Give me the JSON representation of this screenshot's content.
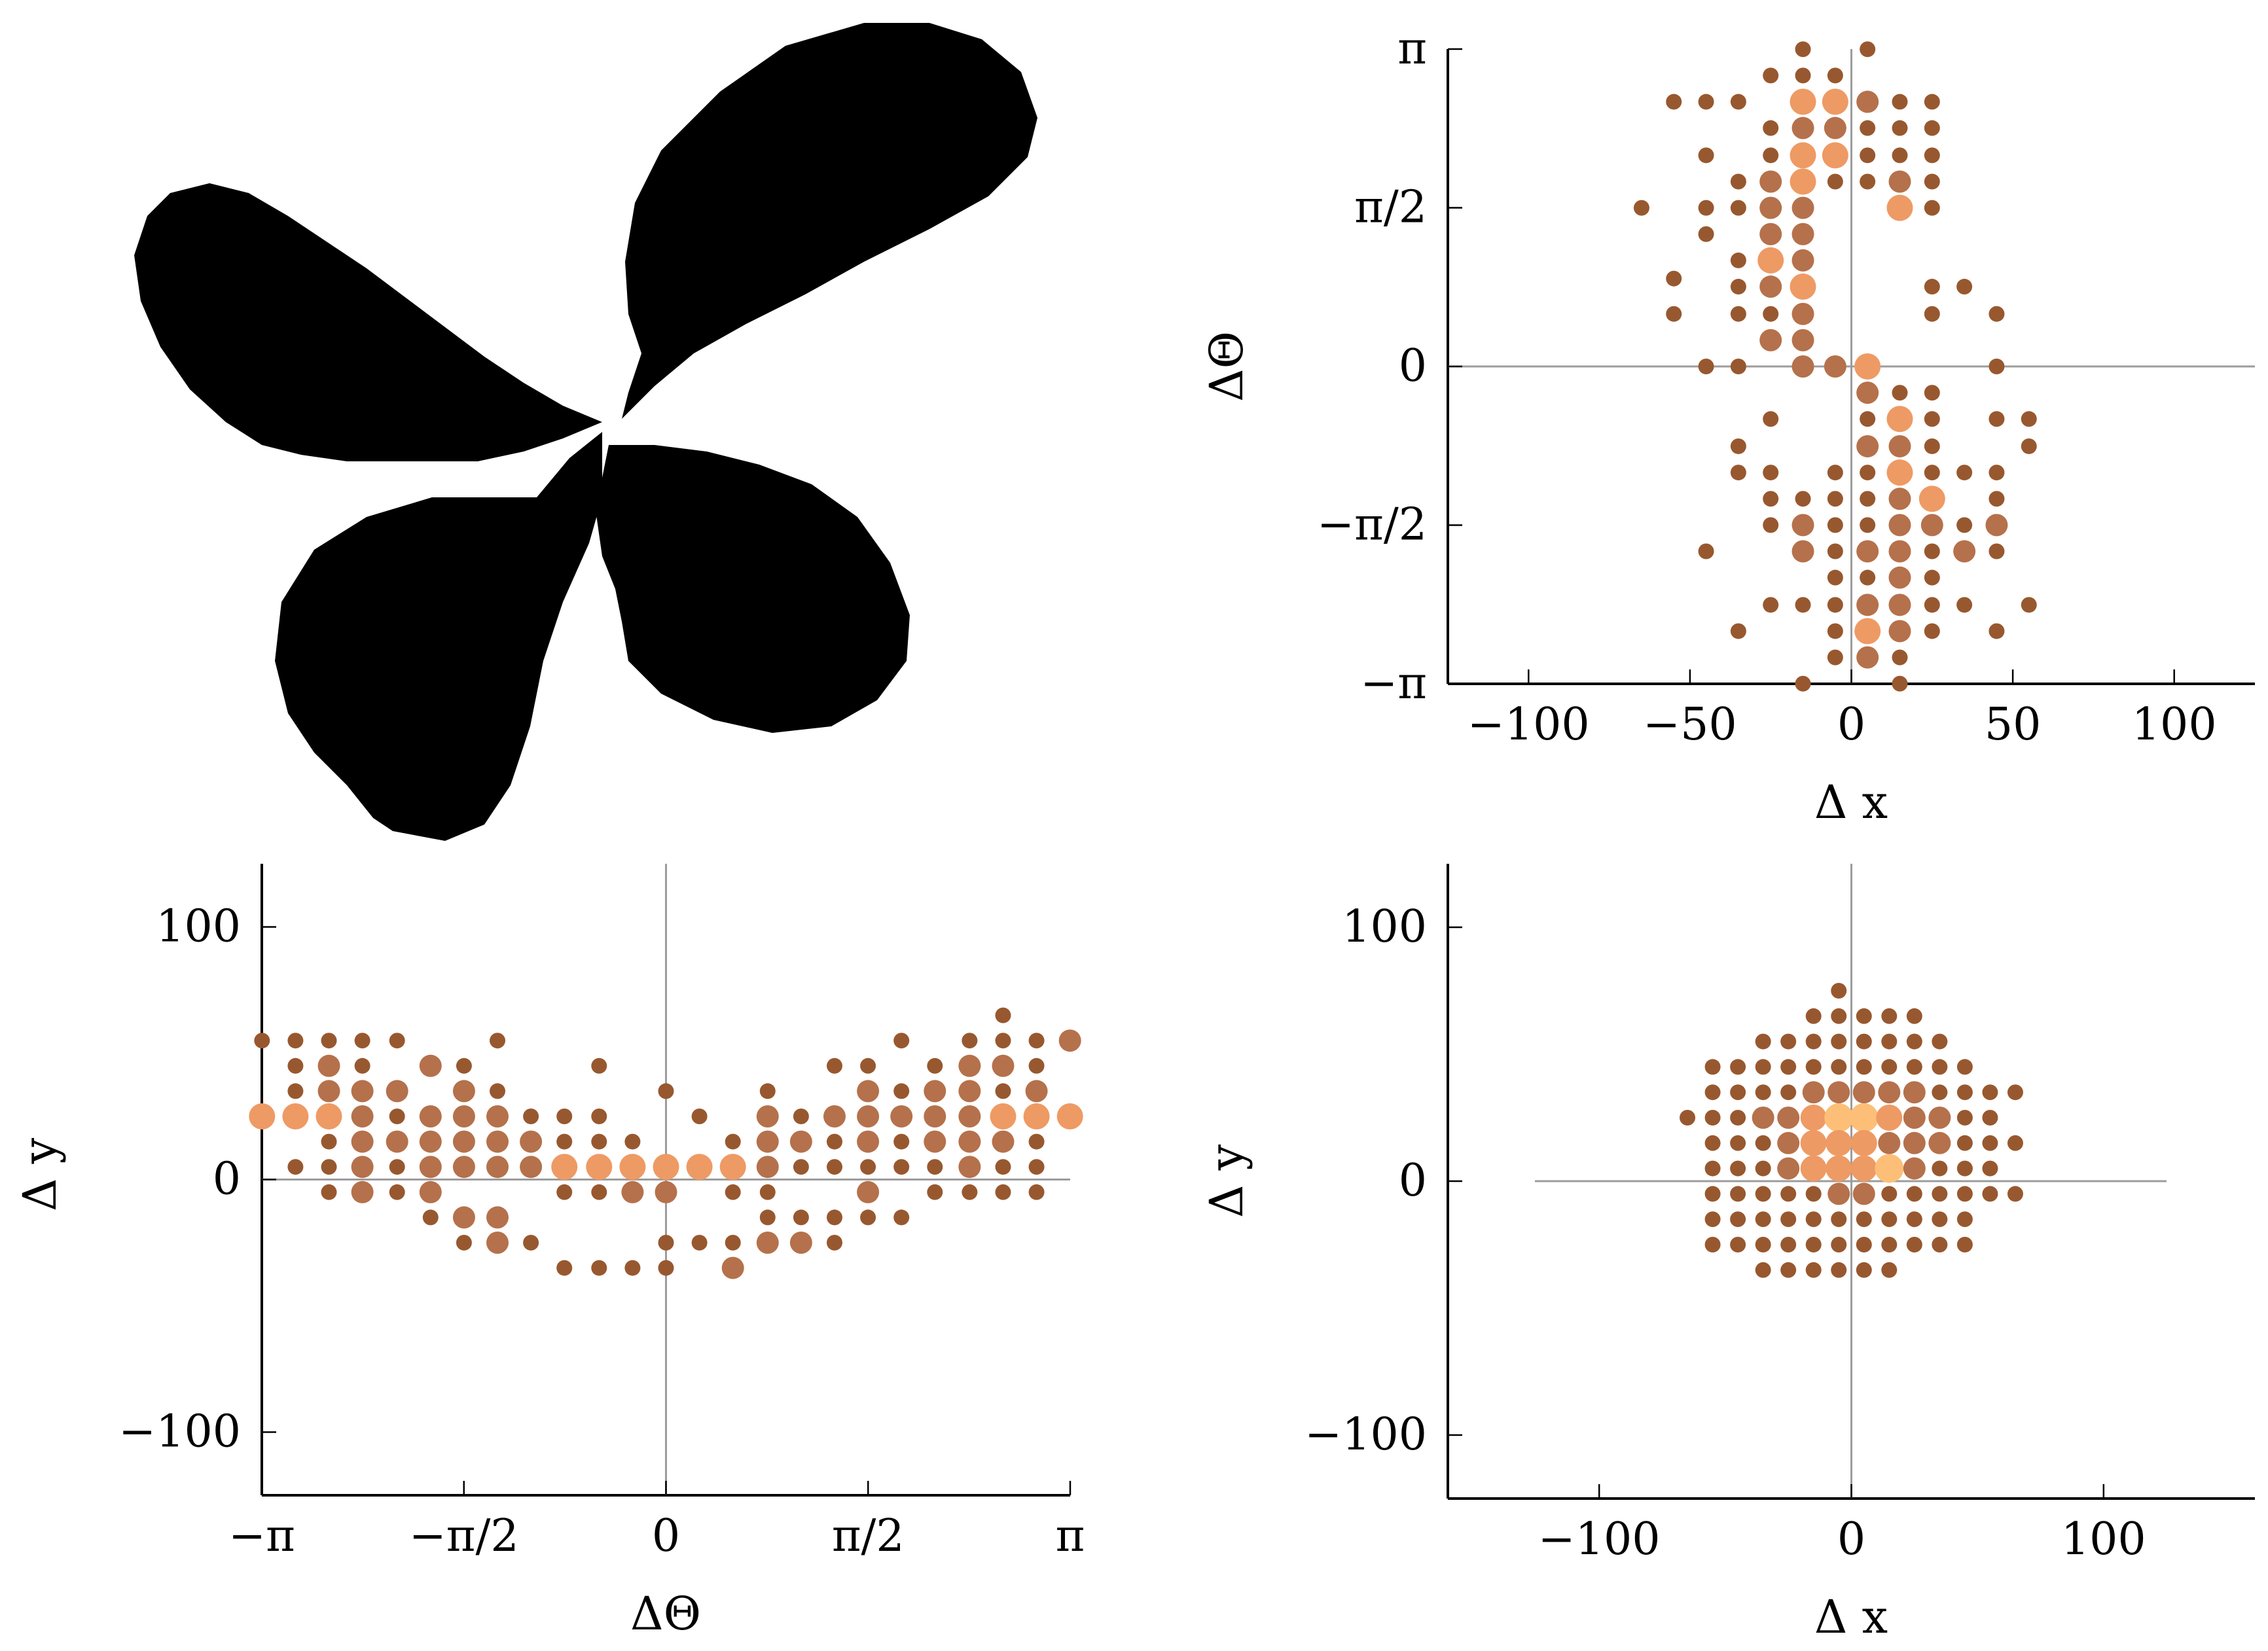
{
  "colors": {
    "dark": "#98582f",
    "mid": "#b5714b",
    "light": "#ee9a64",
    "lightest": "#fdbf78",
    "shape": "#000000",
    "zero_line": "#9c9c9c"
  },
  "chart_data": [
    {
      "type": "image",
      "name": "shape",
      "description_visible": false
    },
    {
      "type": "scatter",
      "name": "dx-dtheta",
      "xlabel": "Δ x",
      "ylabel": "ΔΘ",
      "xlim": [
        -125,
        125
      ],
      "ylim": [
        -3.1416,
        3.1416
      ],
      "xticks": [
        -100,
        -50,
        0,
        50,
        100
      ],
      "xtick_labels": [
        "−100",
        "−50",
        "0",
        "50",
        "100"
      ],
      "yticks": [
        -3.1416,
        -1.5708,
        0,
        1.5708,
        3.1416
      ],
      "ytick_labels": [
        "−π",
        "−π/2",
        "0",
        "π/2",
        "π"
      ],
      "columns": [
        {
          "x": -65,
          "y": [
            1.57
          ],
          "s": [
            1
          ]
        },
        {
          "x": -55,
          "y": [
            2.62,
            0.87,
            0.52
          ],
          "s": [
            1,
            1,
            1
          ]
        },
        {
          "x": -45,
          "y": [
            2.62,
            2.09,
            1.57,
            1.31,
            0,
            -1.83
          ],
          "s": [
            1,
            1,
            1,
            1,
            1,
            1
          ]
        },
        {
          "x": -35,
          "y": [
            2.62,
            1.83,
            1.57,
            1.05,
            0.79,
            0.52,
            0,
            -0.79,
            -1.05,
            -2.62
          ],
          "s": [
            1,
            1,
            1,
            1,
            1,
            1,
            1,
            1,
            1,
            1
          ]
        },
        {
          "x": -25,
          "y": [
            2.88,
            2.36,
            2.09,
            1.83,
            1.57,
            1.31,
            1.05,
            0.79,
            0.52,
            0.26,
            -0.52,
            -1.05,
            -1.31,
            -1.57,
            -2.36
          ],
          "s": [
            1,
            1,
            1,
            2,
            2,
            2,
            3,
            2,
            1,
            2,
            1,
            1,
            1,
            1,
            1
          ]
        },
        {
          "x": -15,
          "y": [
            3.14,
            2.88,
            2.62,
            2.36,
            2.09,
            1.83,
            1.57,
            1.31,
            1.05,
            0.79,
            0.52,
            0.26,
            0,
            -1.31,
            -1.57,
            -1.83,
            -2.36,
            -3.14
          ],
          "s": [
            1,
            1,
            3,
            2,
            3,
            3,
            2,
            2,
            2,
            3,
            2,
            2,
            2,
            1,
            2,
            2,
            1,
            1
          ]
        },
        {
          "x": -5,
          "y": [
            2.88,
            2.62,
            2.36,
            2.09,
            1.83,
            0,
            -1.05,
            -1.31,
            -1.57,
            -1.83,
            -2.09,
            -2.36,
            -2.62,
            -2.88
          ],
          "s": [
            1,
            3,
            2,
            3,
            1,
            2,
            1,
            1,
            1,
            1,
            1,
            1,
            1,
            1
          ]
        },
        {
          "x": 5,
          "y": [
            3.14,
            2.62,
            2.36,
            2.09,
            1.83,
            0,
            -0.26,
            -0.52,
            -0.79,
            -1.05,
            -1.31,
            -1.57,
            -1.83,
            -2.09,
            -2.36,
            -2.62,
            -2.88
          ],
          "s": [
            1,
            2,
            1,
            1,
            1,
            3,
            2,
            1,
            2,
            1,
            1,
            1,
            2,
            1,
            2,
            3,
            2
          ]
        },
        {
          "x": 15,
          "y": [
            2.62,
            2.36,
            2.09,
            1.83,
            1.57,
            -0.26,
            -0.52,
            -0.79,
            -1.05,
            -1.31,
            -1.57,
            -1.83,
            -2.09,
            -2.36,
            -2.62,
            -2.88,
            -3.14
          ],
          "s": [
            1,
            1,
            1,
            2,
            3,
            1,
            3,
            2,
            3,
            2,
            2,
            2,
            2,
            2,
            2,
            1,
            1
          ]
        },
        {
          "x": 25,
          "y": [
            2.62,
            2.36,
            2.09,
            1.83,
            1.57,
            0.79,
            0.52,
            -0.26,
            -0.52,
            -0.79,
            -1.05,
            -1.31,
            -1.57,
            -1.83,
            -2.09,
            -2.36,
            -2.62
          ],
          "s": [
            1,
            1,
            1,
            1,
            1,
            1,
            1,
            1,
            1,
            1,
            1,
            3,
            2,
            1,
            1,
            1,
            1
          ]
        },
        {
          "x": 35,
          "y": [
            0.79,
            -1.05,
            -1.57,
            -1.83,
            -2.36
          ],
          "s": [
            1,
            1,
            1,
            2,
            1
          ]
        },
        {
          "x": 45,
          "y": [
            0.52,
            0,
            -0.52,
            -1.05,
            -1.31,
            -1.57,
            -1.83,
            -2.62
          ],
          "s": [
            1,
            1,
            1,
            1,
            1,
            2,
            1,
            1
          ]
        },
        {
          "x": 55,
          "y": [
            -0.52,
            -0.79,
            -2.36
          ],
          "s": [
            1,
            1,
            1
          ]
        }
      ]
    },
    {
      "type": "scatter",
      "name": "dtheta-dy",
      "xlabel": "ΔΘ",
      "ylabel": "Δ y",
      "xlim": [
        -3.1416,
        3.1416
      ],
      "ylim": [
        -125,
        125
      ],
      "xticks": [
        -3.1416,
        -1.5708,
        0,
        1.5708,
        3.1416
      ],
      "xtick_labels": [
        "−π",
        "−π/2",
        "0",
        "π/2",
        "π"
      ],
      "yticks": [
        -100,
        0,
        100
      ],
      "ytick_labels": [
        "−100",
        "0",
        "100"
      ],
      "columns": [
        {
          "x": -3.14,
          "y": [
            55,
            25
          ],
          "s": [
            1,
            3
          ]
        },
        {
          "x": -2.88,
          "y": [
            55,
            45,
            35,
            25,
            5
          ],
          "s": [
            1,
            1,
            1,
            3,
            1
          ]
        },
        {
          "x": -2.62,
          "y": [
            55,
            45,
            35,
            25,
            15,
            5,
            -5
          ],
          "s": [
            1,
            2,
            2,
            3,
            1,
            1,
            1
          ]
        },
        {
          "x": -2.36,
          "y": [
            55,
            45,
            35,
            25,
            15,
            5,
            -5
          ],
          "s": [
            1,
            1,
            2,
            2,
            2,
            2,
            2
          ]
        },
        {
          "x": -2.09,
          "y": [
            55,
            35,
            25,
            15,
            5,
            -5
          ],
          "s": [
            1,
            2,
            1,
            2,
            1,
            1
          ]
        },
        {
          "x": -1.83,
          "y": [
            45,
            25,
            15,
            5,
            -5,
            -15
          ],
          "s": [
            2,
            2,
            2,
            2,
            2,
            1
          ]
        },
        {
          "x": -1.57,
          "y": [
            45,
            35,
            25,
            15,
            5,
            -15,
            -25
          ],
          "s": [
            1,
            2,
            2,
            2,
            2,
            2,
            1
          ]
        },
        {
          "x": -1.31,
          "y": [
            55,
            35,
            25,
            15,
            5,
            -15,
            -25
          ],
          "s": [
            1,
            1,
            2,
            2,
            2,
            2,
            2
          ]
        },
        {
          "x": -1.05,
          "y": [
            25,
            15,
            5,
            -25
          ],
          "s": [
            1,
            2,
            2,
            1
          ]
        },
        {
          "x": -0.79,
          "y": [
            25,
            15,
            5,
            -5,
            -35
          ],
          "s": [
            1,
            1,
            3,
            1,
            1
          ]
        },
        {
          "x": -0.52,
          "y": [
            45,
            25,
            15,
            5,
            -5,
            -35
          ],
          "s": [
            1,
            1,
            1,
            3,
            1,
            1
          ]
        },
        {
          "x": -0.26,
          "y": [
            15,
            5,
            -5,
            -35
          ],
          "s": [
            1,
            3,
            2,
            1
          ]
        },
        {
          "x": 0,
          "y": [
            35,
            5,
            -5,
            -25,
            -35
          ],
          "s": [
            1,
            3,
            2,
            1,
            1
          ]
        },
        {
          "x": 0.26,
          "y": [
            25,
            5,
            -25
          ],
          "s": [
            1,
            3,
            1
          ]
        },
        {
          "x": 0.52,
          "y": [
            15,
            5,
            -5,
            -25,
            -35
          ],
          "s": [
            1,
            3,
            1,
            1,
            2
          ]
        },
        {
          "x": 0.79,
          "y": [
            35,
            25,
            15,
            5,
            -5,
            -15,
            -25
          ],
          "s": [
            1,
            2,
            2,
            2,
            1,
            1,
            2
          ]
        },
        {
          "x": 1.05,
          "y": [
            25,
            15,
            5,
            -15,
            -25
          ],
          "s": [
            1,
            2,
            1,
            1,
            2
          ]
        },
        {
          "x": 1.31,
          "y": [
            45,
            25,
            15,
            5,
            -15,
            -25
          ],
          "s": [
            1,
            2,
            1,
            1,
            1,
            1
          ]
        },
        {
          "x": 1.57,
          "y": [
            45,
            35,
            25,
            15,
            5,
            -5,
            -15
          ],
          "s": [
            1,
            2,
            2,
            2,
            1,
            2,
            1
          ]
        },
        {
          "x": 1.83,
          "y": [
            55,
            35,
            25,
            15,
            5,
            -15
          ],
          "s": [
            1,
            1,
            2,
            1,
            1,
            1
          ]
        },
        {
          "x": 2.09,
          "y": [
            45,
            35,
            25,
            15,
            5,
            -5
          ],
          "s": [
            1,
            2,
            2,
            2,
            1,
            1
          ]
        },
        {
          "x": 2.36,
          "y": [
            55,
            45,
            35,
            25,
            15,
            5,
            -5
          ],
          "s": [
            1,
            2,
            2,
            2,
            2,
            2,
            1
          ]
        },
        {
          "x": 2.62,
          "y": [
            65,
            55,
            45,
            35,
            25,
            15,
            5,
            -5
          ],
          "s": [
            1,
            1,
            2,
            1,
            3,
            2,
            1,
            1
          ]
        },
        {
          "x": 2.88,
          "y": [
            55,
            45,
            35,
            25,
            15,
            5,
            -5
          ],
          "s": [
            1,
            1,
            2,
            3,
            1,
            1,
            1
          ]
        },
        {
          "x": 3.14,
          "y": [
            55,
            25
          ],
          "s": [
            2,
            3
          ]
        }
      ]
    },
    {
      "type": "scatter",
      "name": "dx-dy",
      "xlabel": "Δ x",
      "ylabel": "Δ y",
      "xlim": [
        -160,
        160
      ],
      "ylim": [
        -125,
        125
      ],
      "xticks": [
        -100,
        0,
        100
      ],
      "xtick_labels": [
        "−100",
        "0",
        "100"
      ],
      "yticks": [
        -100,
        0,
        100
      ],
      "ytick_labels": [
        "−100",
        "0",
        "100"
      ],
      "columns": [
        {
          "x": -65,
          "y": [
            25
          ],
          "s": [
            1
          ]
        },
        {
          "x": -55,
          "y": [
            45,
            35,
            25,
            15,
            5,
            -5,
            -15,
            -25
          ],
          "s": [
            1,
            1,
            1,
            1,
            1,
            1,
            1,
            1
          ]
        },
        {
          "x": -45,
          "y": [
            45,
            35,
            25,
            15,
            5,
            -5,
            -15,
            -25
          ],
          "s": [
            1,
            1,
            1,
            1,
            1,
            1,
            1,
            1
          ]
        },
        {
          "x": -35,
          "y": [
            55,
            45,
            35,
            25,
            15,
            5,
            -5,
            -15,
            -25,
            -35
          ],
          "s": [
            1,
            1,
            1,
            2,
            1,
            1,
            1,
            1,
            1,
            1
          ]
        },
        {
          "x": -25,
          "y": [
            55,
            45,
            35,
            25,
            15,
            5,
            -5,
            -15,
            -25,
            -35
          ],
          "s": [
            1,
            1,
            1,
            2,
            2,
            2,
            1,
            1,
            1,
            1
          ]
        },
        {
          "x": -15,
          "y": [
            65,
            55,
            45,
            35,
            25,
            15,
            5,
            -5,
            -15,
            -25,
            -35
          ],
          "s": [
            1,
            1,
            1,
            2,
            3,
            3,
            3,
            1,
            1,
            1,
            1
          ]
        },
        {
          "x": -5,
          "y": [
            75,
            65,
            55,
            45,
            35,
            25,
            15,
            5,
            -5,
            -15,
            -25,
            -35
          ],
          "s": [
            1,
            1,
            1,
            1,
            2,
            4,
            3,
            3,
            2,
            1,
            1,
            1
          ]
        },
        {
          "x": 5,
          "y": [
            65,
            55,
            45,
            35,
            25,
            15,
            5,
            -5,
            -15,
            -25,
            -35
          ],
          "s": [
            1,
            1,
            1,
            2,
            4,
            3,
            3,
            2,
            1,
            1,
            1
          ]
        },
        {
          "x": 15,
          "y": [
            65,
            55,
            45,
            35,
            25,
            15,
            5,
            -5,
            -15,
            -25,
            -35
          ],
          "s": [
            1,
            1,
            1,
            2,
            3,
            2,
            4,
            1,
            1,
            1,
            1
          ]
        },
        {
          "x": 25,
          "y": [
            65,
            55,
            45,
            35,
            25,
            15,
            5,
            -5,
            -15,
            -25
          ],
          "s": [
            1,
            1,
            1,
            2,
            2,
            2,
            2,
            1,
            1,
            1
          ]
        },
        {
          "x": 35,
          "y": [
            55,
            45,
            35,
            25,
            15,
            5,
            -5,
            -15,
            -25
          ],
          "s": [
            1,
            1,
            1,
            2,
            2,
            1,
            1,
            1,
            1
          ]
        },
        {
          "x": 45,
          "y": [
            45,
            35,
            25,
            15,
            5,
            -5,
            -15,
            -25
          ],
          "s": [
            1,
            1,
            1,
            1,
            1,
            1,
            1,
            1
          ]
        },
        {
          "x": 55,
          "y": [
            35,
            25,
            15,
            5,
            -5
          ],
          "s": [
            1,
            1,
            1,
            1,
            1
          ]
        },
        {
          "x": 65,
          "y": [
            35,
            15,
            -5
          ],
          "s": [
            1,
            1,
            1
          ]
        }
      ]
    }
  ]
}
